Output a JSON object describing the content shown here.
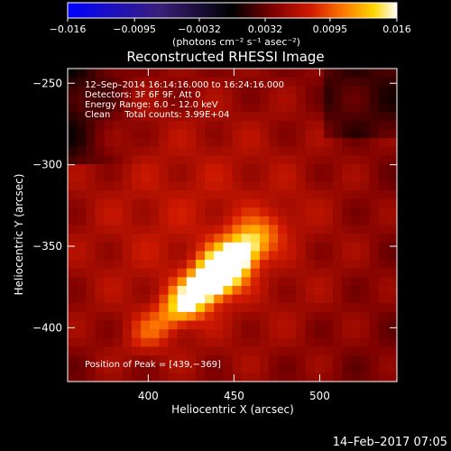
{
  "colorbar": {
    "tick_values": [
      -0.016,
      -0.0095,
      -0.0032,
      0.0032,
      0.0095,
      0.016
    ],
    "tick_labels": [
      "−0.016",
      "−0.0095",
      "−0.0032",
      "0.0032",
      "0.0095",
      "0.016"
    ],
    "units_label": "(photons cm⁻² s⁻¹ asec⁻²)",
    "range": [
      -0.016,
      0.016
    ],
    "colormap_stops": [
      "#0000ff",
      "#3a1f7a",
      "#000000",
      "#7a0000",
      "#d21a00",
      "#ff7a00",
      "#ffd600",
      "#ffffff"
    ]
  },
  "chart_data": {
    "type": "heatmap",
    "title": "Reconstructed RHESSI Image",
    "xlabel": "Heliocentric X (arcsec)",
    "ylabel": "Heliocentric Y (arcsec)",
    "xlim": [
      353,
      545
    ],
    "ylim": [
      -433,
      -241
    ],
    "x_ticks": [
      400,
      450,
      500
    ],
    "y_ticks": [
      -250,
      -300,
      -350,
      -400
    ],
    "x_tick_labels": [
      "400",
      "450",
      "500"
    ],
    "y_tick_labels": [
      "−250",
      "−300",
      "−350",
      "−400"
    ],
    "peak": [
      439,
      -369
    ],
    "sources": [
      {
        "x": 439,
        "y": -369,
        "intensity": 0.016
      },
      {
        "x": 457,
        "y": -345,
        "intensity": 0.0095
      },
      {
        "x": 423,
        "y": -385,
        "intensity": 0.0075
      },
      {
        "x": 446,
        "y": -360,
        "intensity": 0.012
      },
      {
        "x": 400,
        "y": -404,
        "intensity": 0.006
      }
    ],
    "annotations": [
      "12–Sep–2014 16:14:16.000 to 16:24:16.000",
      "Detectors: 3F 6F 9F, Att 0",
      "Energy Range: 6.0 – 12.0 keV",
      "Clean     Total counts: 3.99E+04",
      "Position of Peak = [439,−369]"
    ]
  },
  "footer": {
    "timestamp": "14–Feb–2017 07:05"
  }
}
